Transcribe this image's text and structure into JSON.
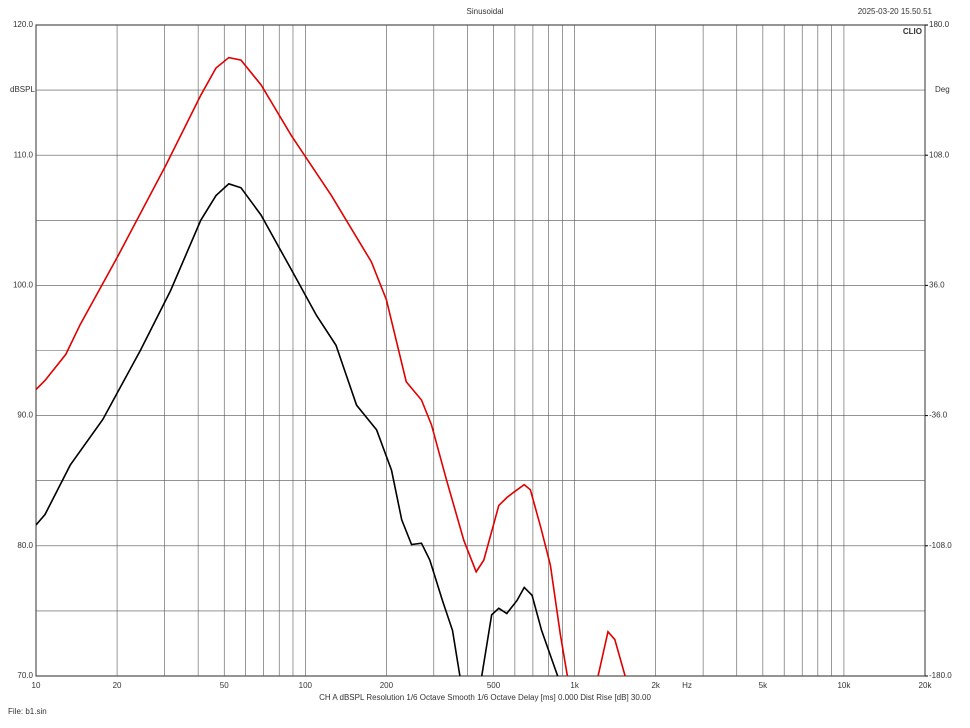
{
  "chart_data": {
    "type": "line",
    "title": "Sinusoidal",
    "timestamp": "2025-03-20 15.50.51",
    "brand": "CLIO",
    "y_label": "dBSPL",
    "y2_label": "Deg",
    "x_unit": "Hz",
    "settings_line": "CH A   dBSPL   Resolution 1/6 Octave   Smooth 1/6 Octave   Delay [ms] 0.000   Dist Rise [dB] 30.00",
    "file_label": "File: b1.sin",
    "log_x": true,
    "grid": true,
    "xlim": [
      10,
      20000
    ],
    "xticks": [
      10,
      20,
      50,
      100,
      200,
      500,
      {
        "value": 1000,
        "label": "1k"
      },
      {
        "value": 2000,
        "label": "2k"
      },
      {
        "value": 5000,
        "label": "5k"
      },
      {
        "value": 10000,
        "label": "10k"
      },
      {
        "value": 20000,
        "label": "20k"
      }
    ],
    "minor_xticks": [
      30,
      40,
      60,
      70,
      80,
      90,
      300,
      400,
      600,
      700,
      800,
      900,
      3000,
      4000,
      6000,
      7000,
      8000,
      9000
    ],
    "ylim": [
      70,
      120
    ],
    "yticks": [
      {
        "value": 70,
        "label": "70.0"
      },
      {
        "value": 80,
        "label": "80.0"
      },
      {
        "value": 90,
        "label": "90.0"
      },
      {
        "value": 100,
        "label": "100.0"
      },
      {
        "value": 110,
        "label": "110.0"
      },
      {
        "value": 120,
        "label": "120.0"
      }
    ],
    "minor_yticks": [
      75,
      85,
      95,
      105,
      115
    ],
    "y2lim": [
      -180,
      180
    ],
    "y2ticks": [
      {
        "value": -180,
        "label": "-180.0"
      },
      {
        "value": -108,
        "label": "-108.0"
      },
      {
        "value": -36,
        "label": "-36.0"
      },
      {
        "value": 36,
        "label": "36.0"
      },
      {
        "value": 108,
        "label": "108.0"
      },
      {
        "value": 180,
        "label": "180.0"
      }
    ],
    "series": [
      {
        "name": "Red",
        "color": "#e00000",
        "x": [
          10,
          10.8,
          12.9,
          14.6,
          20.2,
          30.3,
          40.9,
          46.6,
          52,
          57.7,
          68.5,
          88.8,
          125,
          176,
          200,
          237,
          270,
          294,
          334,
          388,
          431,
          460,
          523,
          560,
          593,
          650,
          685,
          749,
          813,
          885,
          940,
          1000,
          1222,
          1330,
          1410,
          1540
        ],
        "values": [
          92.0,
          92.7,
          94.7,
          97.0,
          102.3,
          109.2,
          114.6,
          116.7,
          117.5,
          117.3,
          115.4,
          111.5,
          106.9,
          101.8,
          98.9,
          92.6,
          91.2,
          89.3,
          85.1,
          80.4,
          78.0,
          78.9,
          83.1,
          83.7,
          84.1,
          84.7,
          84.3,
          81.4,
          78.5,
          73.2,
          70.0,
          null,
          70.0,
          73.4,
          72.8,
          70.0
        ]
      },
      {
        "name": "Black",
        "color": "#000000",
        "x": [
          10,
          10.8,
          13.4,
          17.7,
          24.4,
          31.6,
          40.9,
          46.6,
          52,
          57.7,
          68.5,
          88.8,
          110,
          130,
          155,
          184,
          209,
          228,
          248,
          270,
          290,
          323,
          352,
          375,
          410,
          452,
          492,
          523,
          560,
          611,
          650,
          695,
          754,
          865
        ],
        "values": [
          81.6,
          82.4,
          86.2,
          89.7,
          95.0,
          99.6,
          105.0,
          106.9,
          107.8,
          107.5,
          105.4,
          101.2,
          97.7,
          95.4,
          90.8,
          88.9,
          85.8,
          82.0,
          80.1,
          80.2,
          78.9,
          75.8,
          73.5,
          70.0,
          null,
          70.0,
          74.7,
          75.2,
          74.8,
          75.8,
          76.8,
          76.2,
          73.5,
          70.0
        ]
      }
    ]
  }
}
